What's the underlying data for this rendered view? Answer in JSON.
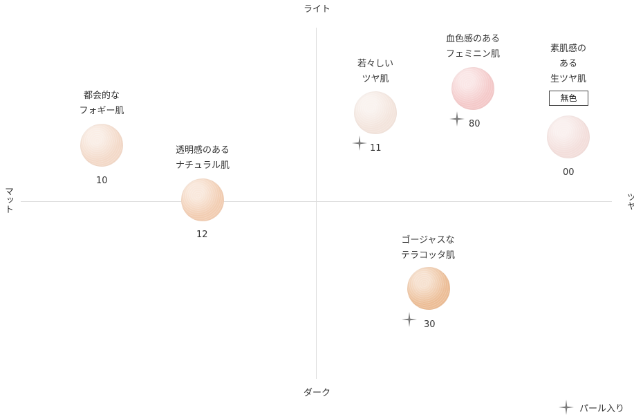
{
  "axes": {
    "top": "ライト",
    "bottom": "ダーク",
    "left": "マット",
    "right": "ツヤ"
  },
  "items": [
    {
      "caption": [
        "都会的な",
        "フォギー肌"
      ],
      "code": "10",
      "pearl": false,
      "color": "#f3d9c8"
    },
    {
      "caption": [
        "透明感のある",
        "ナチュラル肌"
      ],
      "code": "12",
      "pearl": false,
      "color": "#f2cdb2"
    },
    {
      "caption": [
        "若々しい",
        "ツヤ肌"
      ],
      "code": "11",
      "pearl": true,
      "color": "#f3e4dc"
    },
    {
      "caption": [
        "血色感のある",
        "フェミニン肌"
      ],
      "code": "80",
      "pearl": true,
      "color": "#f4c9c9"
    },
    {
      "caption": [
        "素肌感の",
        "ある",
        "生ツヤ肌"
      ],
      "code": "00",
      "pearl": false,
      "color": "#f3dedb",
      "badge": "無色"
    },
    {
      "caption": [
        "ゴージャスな",
        "テラコッタ肌"
      ],
      "code": "30",
      "pearl": true,
      "color": "#ecbd96"
    }
  ],
  "legend": {
    "label": "パール入り",
    "icon": "sparkle-icon",
    "icon_color": "#7a7a7a"
  }
}
